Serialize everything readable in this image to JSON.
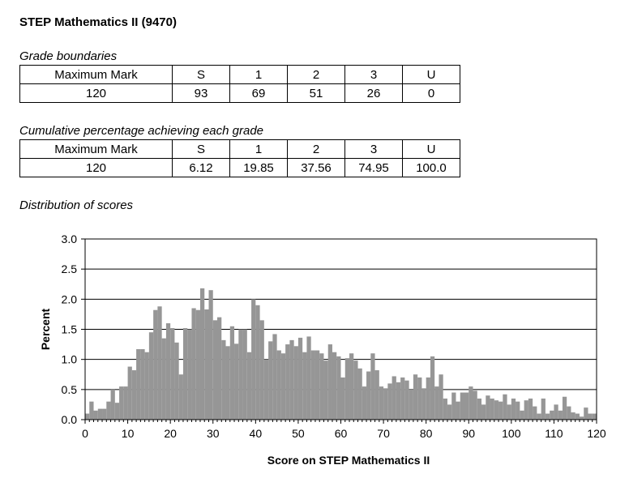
{
  "title": "STEP Mathematics II (9470)",
  "grade_boundaries": {
    "caption": "Grade boundaries",
    "header": [
      "Maximum Mark",
      "S",
      "1",
      "2",
      "3",
      "U"
    ],
    "values": [
      "120",
      "93",
      "69",
      "51",
      "26",
      "0"
    ]
  },
  "cumulative": {
    "caption": "Cumulative percentage achieving each grade",
    "header": [
      "Maximum Mark",
      "S",
      "1",
      "2",
      "3",
      "U"
    ],
    "values": [
      "120",
      "6.12",
      "19.85",
      "37.56",
      "74.95",
      "100.0"
    ]
  },
  "distribution_caption": "Distribution of scores",
  "colors": {
    "bar": "#969696",
    "grid": "#000000"
  },
  "chart_data": {
    "type": "bar",
    "xlabel": "Score on STEP Mathematics II",
    "ylabel": "Percent",
    "xlim": [
      0,
      120
    ],
    "ylim": [
      0,
      3.0
    ],
    "xticks": [
      0,
      10,
      20,
      30,
      40,
      50,
      60,
      70,
      80,
      90,
      100,
      110,
      120
    ],
    "xtick_labels": [
      "0",
      "10",
      "20",
      "30",
      "40",
      "50",
      "60",
      "70",
      "80",
      "90",
      "100",
      "110",
      "120"
    ],
    "yticks": [
      0,
      0.5,
      1.0,
      1.5,
      2.0,
      2.5,
      3.0
    ],
    "ytick_labels": [
      "0.0",
      "0.5",
      "1.0",
      "1.5",
      "2.0",
      "2.5",
      "3.0"
    ],
    "grid": true,
    "x": [
      0,
      1,
      2,
      3,
      4,
      5,
      6,
      7,
      8,
      9,
      10,
      11,
      12,
      13,
      14,
      15,
      16,
      17,
      18,
      19,
      20,
      21,
      22,
      23,
      24,
      25,
      26,
      27,
      28,
      29,
      30,
      31,
      32,
      33,
      34,
      35,
      36,
      37,
      38,
      39,
      40,
      41,
      42,
      43,
      44,
      45,
      46,
      47,
      48,
      49,
      50,
      51,
      52,
      53,
      54,
      55,
      56,
      57,
      58,
      59,
      60,
      61,
      62,
      63,
      64,
      65,
      66,
      67,
      68,
      69,
      70,
      71,
      72,
      73,
      74,
      75,
      76,
      77,
      78,
      79,
      80,
      81,
      82,
      83,
      84,
      85,
      86,
      87,
      88,
      89,
      90,
      91,
      92,
      93,
      94,
      95,
      96,
      97,
      98,
      99,
      100,
      101,
      102,
      103,
      104,
      105,
      106,
      107,
      108,
      109,
      110,
      111,
      112,
      113,
      114,
      115,
      116,
      117,
      118,
      119,
      120
    ],
    "values": [
      0.1,
      0.3,
      0.15,
      0.18,
      0.18,
      0.3,
      0.5,
      0.28,
      0.55,
      0.55,
      0.88,
      0.82,
      1.17,
      1.17,
      1.12,
      1.45,
      1.82,
      1.88,
      1.35,
      1.6,
      1.52,
      1.28,
      0.75,
      1.52,
      1.5,
      1.85,
      1.82,
      2.18,
      1.83,
      2.15,
      1.65,
      1.7,
      1.32,
      1.22,
      1.55,
      1.26,
      1.5,
      1.5,
      1.12,
      2.0,
      1.9,
      1.65,
      1.0,
      1.3,
      1.42,
      1.15,
      1.1,
      1.25,
      1.32,
      1.22,
      1.36,
      1.12,
      1.38,
      1.15,
      1.15,
      1.1,
      0.98,
      1.25,
      1.12,
      1.05,
      0.7,
      1.02,
      1.1,
      0.98,
      0.85,
      0.55,
      0.8,
      1.1,
      0.82,
      0.55,
      0.52,
      0.6,
      0.72,
      0.62,
      0.7,
      0.65,
      0.5,
      0.75,
      0.7,
      0.52,
      0.7,
      1.05,
      0.55,
      0.75,
      0.35,
      0.25,
      0.45,
      0.3,
      0.45,
      0.45,
      0.55,
      0.48,
      0.35,
      0.25,
      0.4,
      0.35,
      0.32,
      0.3,
      0.42,
      0.25,
      0.35,
      0.3,
      0.15,
      0.32,
      0.35,
      0.22,
      0.1,
      0.35,
      0.1,
      0.15,
      0.25,
      0.15,
      0.38,
      0.22,
      0.12,
      0.1,
      0.05,
      0.2,
      0.1,
      0.1,
      0.0
    ]
  }
}
